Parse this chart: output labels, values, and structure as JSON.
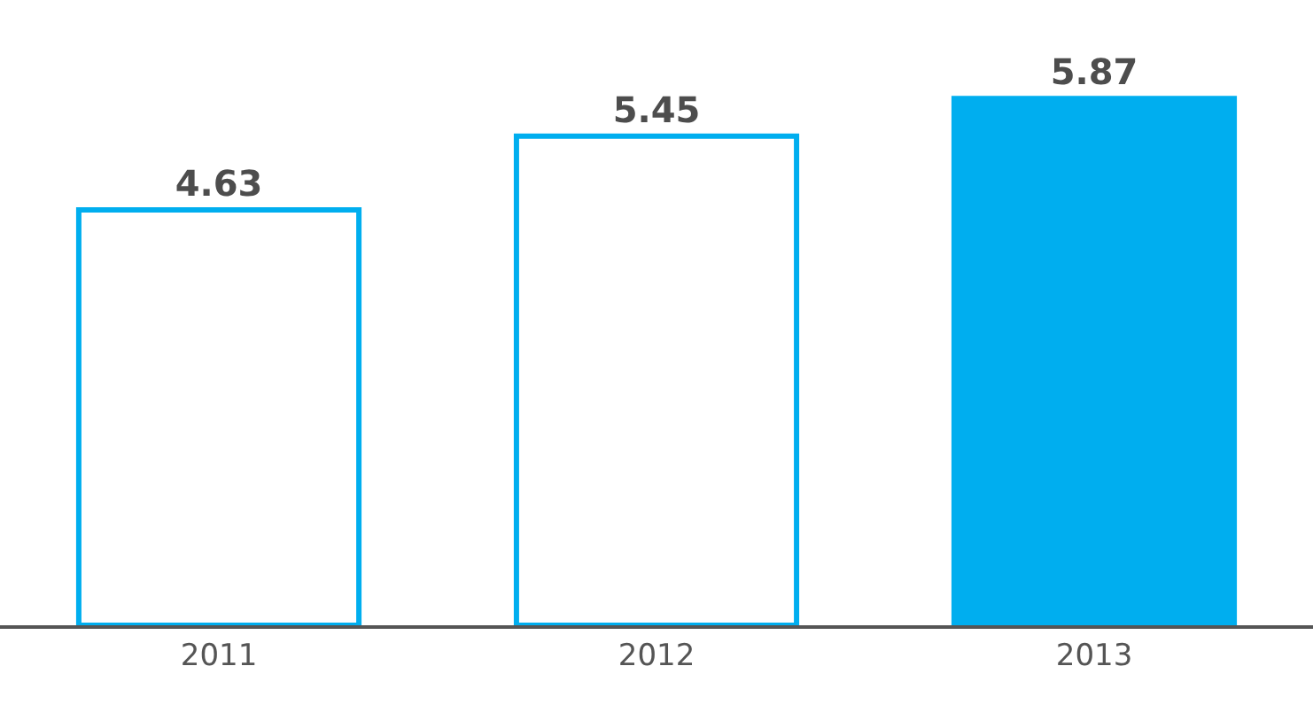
{
  "chart_data": {
    "type": "bar",
    "categories": [
      "2011",
      "2012",
      "2013"
    ],
    "values": [
      4.63,
      5.45,
      5.87
    ],
    "color": "#00aeef",
    "colors": [
      "#ffffff",
      "#ffffff",
      "#00aeef"
    ],
    "data_labels": true,
    "tick_labels": "x"
  }
}
